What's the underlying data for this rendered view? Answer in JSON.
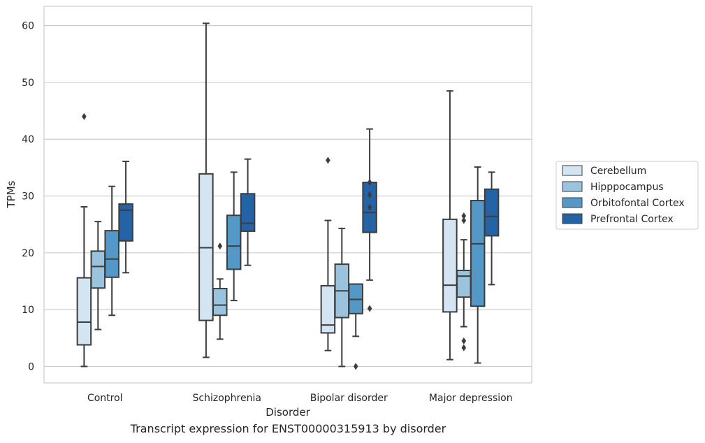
{
  "caption": "Transcript expression for ENST00000315913 by disorder",
  "chart_data": {
    "type": "box",
    "xlabel": "Disorder",
    "ylabel": "TPMs",
    "ylim": [
      -2.9,
      63.4
    ],
    "yticks": [
      0,
      10,
      20,
      30,
      40,
      50,
      60
    ],
    "grid": "horizontal",
    "legend_position": "right",
    "categories": [
      "Control",
      "Schizophrenia",
      "Bipolar disorder",
      "Major depression"
    ],
    "series": [
      {
        "name": "Cerebellum",
        "color": "#d3e4f3",
        "boxes": [
          {
            "whisker_low": 0.0,
            "q1": 3.8,
            "median": 7.8,
            "q3": 15.6,
            "whisker_high": 28.1,
            "outliers": [
              44.0
            ]
          },
          {
            "whisker_low": 1.6,
            "q1": 8.1,
            "median": 20.9,
            "q3": 33.9,
            "whisker_high": 60.4,
            "outliers": []
          },
          {
            "whisker_low": 2.8,
            "q1": 5.9,
            "median": 7.3,
            "q3": 14.2,
            "whisker_high": 25.7,
            "outliers": [
              36.3
            ]
          },
          {
            "whisker_low": 1.2,
            "q1": 9.6,
            "median": 14.3,
            "q3": 25.9,
            "whisker_high": 48.5,
            "outliers": []
          }
        ]
      },
      {
        "name": "Hipppocampus",
        "color": "#9ac4dd",
        "boxes": [
          {
            "whisker_low": 6.5,
            "q1": 13.8,
            "median": 17.6,
            "q3": 20.3,
            "whisker_high": 25.5,
            "outliers": []
          },
          {
            "whisker_low": 4.8,
            "q1": 9.0,
            "median": 10.8,
            "q3": 13.7,
            "whisker_high": 15.4,
            "outliers": [
              21.2
            ]
          },
          {
            "whisker_low": 0.0,
            "q1": 8.6,
            "median": 13.3,
            "q3": 18.0,
            "whisker_high": 24.3,
            "outliers": []
          },
          {
            "whisker_low": 7.0,
            "q1": 12.2,
            "median": 15.9,
            "q3": 16.9,
            "whisker_high": 22.3,
            "outliers": [
              3.3,
              4.5,
              25.7,
              26.5
            ]
          }
        ]
      },
      {
        "name": "Orbitofontal Cortex",
        "color": "#5498c8",
        "boxes": [
          {
            "whisker_low": 9.0,
            "q1": 15.7,
            "median": 18.9,
            "q3": 23.9,
            "whisker_high": 31.7,
            "outliers": []
          },
          {
            "whisker_low": 11.6,
            "q1": 17.1,
            "median": 21.2,
            "q3": 26.6,
            "whisker_high": 34.2,
            "outliers": []
          },
          {
            "whisker_low": 5.3,
            "q1": 9.3,
            "median": 11.8,
            "q3": 14.5,
            "whisker_high": 14.5,
            "outliers": [
              0.0
            ]
          },
          {
            "whisker_low": 0.6,
            "q1": 10.6,
            "median": 21.6,
            "q3": 29.2,
            "whisker_high": 35.1,
            "outliers": []
          }
        ]
      },
      {
        "name": "Prefrontal Cortex",
        "color": "#2463a5",
        "boxes": [
          {
            "whisker_low": 16.5,
            "q1": 22.1,
            "median": 27.5,
            "q3": 28.6,
            "whisker_high": 36.1,
            "outliers": []
          },
          {
            "whisker_low": 17.8,
            "q1": 23.8,
            "median": 25.2,
            "q3": 30.4,
            "whisker_high": 36.5,
            "outliers": []
          },
          {
            "whisker_low": 15.2,
            "q1": 23.6,
            "median": 27.1,
            "q3": 32.4,
            "whisker_high": 41.8,
            "outliers": [
              10.2,
              28.0,
              30.2,
              32.4
            ]
          },
          {
            "whisker_low": 14.4,
            "q1": 23.0,
            "median": 26.4,
            "q3": 31.2,
            "whisker_high": 34.2,
            "outliers": []
          }
        ]
      }
    ]
  }
}
